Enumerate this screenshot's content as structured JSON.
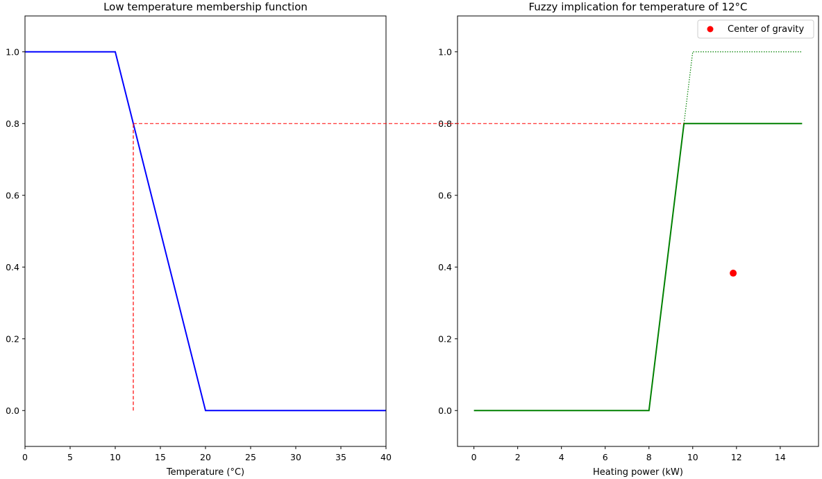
{
  "chart_data": [
    {
      "type": "line",
      "title": "Low temperature membership function",
      "xlabel": "Temperature (°C)",
      "ylabel": "",
      "xlim": [
        0,
        40
      ],
      "ylim": [
        -0.1,
        1.1
      ],
      "xticks": [
        0,
        5,
        10,
        15,
        20,
        25,
        30,
        35,
        40
      ],
      "xtick_labels": [
        "0",
        "5",
        "10",
        "15",
        "20",
        "25",
        "30",
        "35",
        "40"
      ],
      "yticks": [
        0.0,
        0.2,
        0.4,
        0.6,
        0.8,
        1.0
      ],
      "ytick_labels": [
        "0.0",
        "0.2",
        "0.4",
        "0.6",
        "0.8",
        "1.0"
      ],
      "grid": false,
      "series": [
        {
          "x": [
            0,
            10,
            20,
            40
          ],
          "y": [
            1,
            1,
            0,
            0
          ],
          "color": "#0000ff",
          "style": "solid"
        },
        {
          "x": [
            12,
            12
          ],
          "y": [
            0,
            0.8
          ],
          "color": "#ff0000",
          "style": "dashed"
        }
      ]
    },
    {
      "type": "line",
      "title": "Fuzzy implication for temperature of 12°C",
      "xlabel": "Heating power (kW)",
      "ylabel": "",
      "xlim": [
        -0.75,
        15.75
      ],
      "ylim": [
        -0.1,
        1.1
      ],
      "xticks": [
        0,
        2,
        4,
        6,
        8,
        10,
        12,
        14
      ],
      "xtick_labels": [
        "0",
        "2",
        "4",
        "6",
        "8",
        "10",
        "12",
        "14"
      ],
      "yticks": [
        0.0,
        0.2,
        0.4,
        0.6,
        0.8,
        1.0
      ],
      "ytick_labels": [
        "0.0",
        "0.2",
        "0.4",
        "0.6",
        "0.8",
        "1.0"
      ],
      "grid": false,
      "legend": {
        "position": "top-right",
        "entries": [
          {
            "label": "Center of gravity",
            "color": "#ff0000",
            "marker": "circle"
          }
        ]
      },
      "series": [
        {
          "x": [
            0,
            8,
            9.6,
            15
          ],
          "y": [
            0,
            0,
            0.8,
            0.8
          ],
          "color": "#008000",
          "style": "solid"
        },
        {
          "x": [
            9.6,
            10,
            15
          ],
          "y": [
            0.8,
            1,
            1
          ],
          "color": "#008000",
          "style": "dotted"
        }
      ],
      "points": [
        {
          "x": 11.85,
          "y": 0.383,
          "color": "#ff0000"
        }
      ]
    }
  ],
  "connector": {
    "level": 0.8,
    "from_x": 12,
    "to_x": 9.6,
    "color": "#ff0000",
    "style": "dashed"
  }
}
